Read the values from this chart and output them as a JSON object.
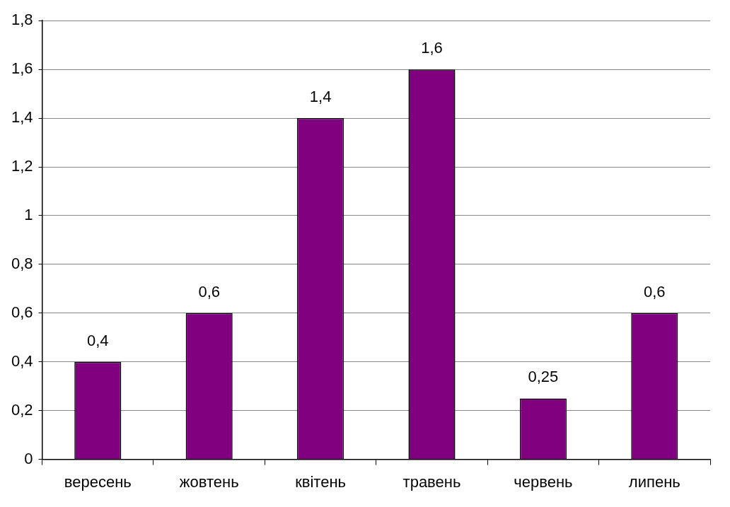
{
  "chart_data": {
    "type": "bar",
    "categories": [
      "вересень",
      "жовтень",
      "квітень",
      "травень",
      "червень",
      "липень"
    ],
    "values": [
      0.4,
      0.6,
      1.4,
      1.6,
      0.25,
      0.6
    ],
    "value_labels": [
      "0,4",
      "0,6",
      "1,4",
      "1,6",
      "0,25",
      "0,6"
    ],
    "color": "#800080",
    "ylim": [
      0,
      1.8
    ],
    "yticks": [
      0,
      {
        "value": 0.2,
        "label": "0,2"
      },
      {
        "value": 0.4,
        "label": "0,4"
      },
      {
        "value": 0.6,
        "label": "0,6"
      },
      {
        "value": 0.8,
        "label": "0,8"
      },
      1,
      {
        "value": 1.2,
        "label": "1,2"
      },
      {
        "value": 1.4,
        "label": "1,4"
      },
      {
        "value": 1.6,
        "label": "1,6"
      },
      {
        "value": 1.8,
        "label": "1,8"
      }
    ],
    "grid": "y",
    "legend": false
  }
}
